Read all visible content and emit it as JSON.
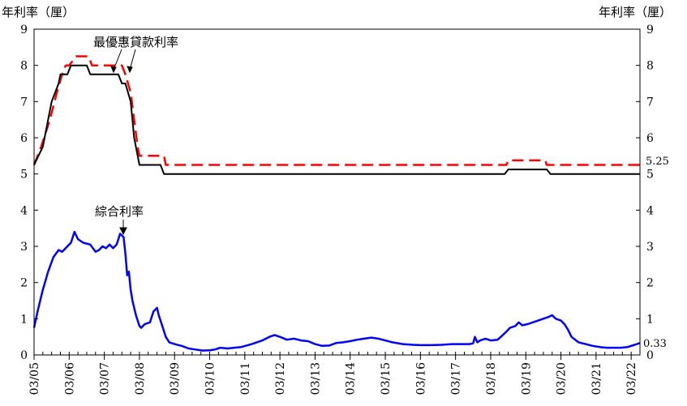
{
  "chart_data": {
    "type": "line",
    "ylabel_left": "年利率（厘）",
    "ylabel_right": "年利率（厘）",
    "ylim": [
      0,
      9
    ],
    "yticks": [
      0,
      1,
      2,
      3,
      4,
      5,
      6,
      7,
      8,
      9
    ],
    "xlim": [
      2005.0,
      2022.25
    ],
    "xtick_labels": [
      "03/05",
      "03/06",
      "03/07",
      "03/08",
      "03/09",
      "03/10",
      "03/11",
      "03/12",
      "03/13",
      "03/14",
      "03/15",
      "03/16",
      "03/17",
      "03/18",
      "03/19",
      "03/20",
      "03/21",
      "03/22"
    ],
    "xtick_years": [
      2005,
      2006,
      2007,
      2008,
      2009,
      2010,
      2011,
      2012,
      2013,
      2014,
      2015,
      2016,
      2017,
      2018,
      2019,
      2020,
      2021,
      2022
    ],
    "annotations": {
      "prime_label": "最優惠貸款利率",
      "composite_label": "綜合利率",
      "prime_end_value": "5.25",
      "composite_end_value": "0.33"
    },
    "series": [
      {
        "id": "prime_red",
        "color": "#ff0000",
        "dash": "dashed",
        "points": [
          [
            2005.0,
            5.25
          ],
          [
            2005.2,
            5.75
          ],
          [
            2005.45,
            6.5
          ],
          [
            2005.65,
            7.25
          ],
          [
            2005.8,
            7.75
          ],
          [
            2005.9,
            8.0
          ],
          [
            2006.0,
            8.0
          ],
          [
            2006.2,
            8.25
          ],
          [
            2006.55,
            8.25
          ],
          [
            2006.65,
            8.0
          ],
          [
            2007.5,
            8.0
          ],
          [
            2007.6,
            7.75
          ],
          [
            2007.75,
            7.25
          ],
          [
            2007.85,
            6.5
          ],
          [
            2007.95,
            5.75
          ],
          [
            2008.0,
            5.5
          ],
          [
            2008.7,
            5.5
          ],
          [
            2008.75,
            5.25
          ],
          [
            2018.45,
            5.25
          ],
          [
            2018.5,
            5.375
          ],
          [
            2019.55,
            5.375
          ],
          [
            2019.6,
            5.25
          ],
          [
            2022.25,
            5.25
          ]
        ]
      },
      {
        "id": "prime_black",
        "color": "#000000",
        "dash": "solid",
        "points": [
          [
            2005.0,
            5.25
          ],
          [
            2005.25,
            5.75
          ],
          [
            2005.5,
            7.0
          ],
          [
            2005.7,
            7.5
          ],
          [
            2005.75,
            7.75
          ],
          [
            2005.95,
            7.75
          ],
          [
            2006.05,
            8.0
          ],
          [
            2006.5,
            8.0
          ],
          [
            2006.6,
            7.75
          ],
          [
            2007.4,
            7.75
          ],
          [
            2007.5,
            7.5
          ],
          [
            2007.6,
            7.5
          ],
          [
            2007.75,
            7.0
          ],
          [
            2007.85,
            6.0
          ],
          [
            2008.0,
            5.25
          ],
          [
            2008.6,
            5.25
          ],
          [
            2008.7,
            5.0
          ],
          [
            2018.4,
            5.0
          ],
          [
            2018.5,
            5.125
          ],
          [
            2019.6,
            5.125
          ],
          [
            2019.7,
            5.0
          ],
          [
            2022.25,
            5.0
          ]
        ]
      },
      {
        "id": "composite",
        "color": "#0000ff",
        "dash": "solid",
        "points": [
          [
            2005.0,
            0.75
          ],
          [
            2005.1,
            1.2
          ],
          [
            2005.25,
            1.8
          ],
          [
            2005.4,
            2.3
          ],
          [
            2005.55,
            2.7
          ],
          [
            2005.7,
            2.9
          ],
          [
            2005.8,
            2.85
          ],
          [
            2005.95,
            3.0
          ],
          [
            2006.05,
            3.1
          ],
          [
            2006.15,
            3.4
          ],
          [
            2006.25,
            3.2
          ],
          [
            2006.4,
            3.1
          ],
          [
            2006.6,
            3.05
          ],
          [
            2006.75,
            2.85
          ],
          [
            2006.85,
            2.9
          ],
          [
            2006.95,
            3.0
          ],
          [
            2007.05,
            2.95
          ],
          [
            2007.15,
            3.05
          ],
          [
            2007.25,
            2.95
          ],
          [
            2007.35,
            3.05
          ],
          [
            2007.45,
            3.35
          ],
          [
            2007.55,
            3.25
          ],
          [
            2007.6,
            2.8
          ],
          [
            2007.65,
            2.2
          ],
          [
            2007.7,
            2.3
          ],
          [
            2007.75,
            1.8
          ],
          [
            2007.8,
            1.5
          ],
          [
            2007.9,
            1.1
          ],
          [
            2008.0,
            0.8
          ],
          [
            2008.05,
            0.75
          ],
          [
            2008.15,
            0.85
          ],
          [
            2008.3,
            0.9
          ],
          [
            2008.4,
            1.2
          ],
          [
            2008.5,
            1.3
          ],
          [
            2008.55,
            1.1
          ],
          [
            2008.65,
            0.8
          ],
          [
            2008.75,
            0.5
          ],
          [
            2008.85,
            0.35
          ],
          [
            2009.0,
            0.3
          ],
          [
            2009.2,
            0.25
          ],
          [
            2009.4,
            0.18
          ],
          [
            2009.6,
            0.15
          ],
          [
            2009.8,
            0.12
          ],
          [
            2010.0,
            0.13
          ],
          [
            2010.15,
            0.15
          ],
          [
            2010.3,
            0.2
          ],
          [
            2010.5,
            0.18
          ],
          [
            2010.7,
            0.2
          ],
          [
            2010.9,
            0.22
          ],
          [
            2011.2,
            0.3
          ],
          [
            2011.5,
            0.4
          ],
          [
            2011.7,
            0.5
          ],
          [
            2011.85,
            0.55
          ],
          [
            2012.0,
            0.5
          ],
          [
            2012.2,
            0.42
          ],
          [
            2012.4,
            0.45
          ],
          [
            2012.6,
            0.4
          ],
          [
            2012.8,
            0.38
          ],
          [
            2013.0,
            0.3
          ],
          [
            2013.2,
            0.25
          ],
          [
            2013.4,
            0.26
          ],
          [
            2013.6,
            0.33
          ],
          [
            2013.8,
            0.35
          ],
          [
            2014.0,
            0.38
          ],
          [
            2014.2,
            0.42
          ],
          [
            2014.4,
            0.45
          ],
          [
            2014.6,
            0.48
          ],
          [
            2014.8,
            0.45
          ],
          [
            2015.0,
            0.4
          ],
          [
            2015.2,
            0.35
          ],
          [
            2015.5,
            0.3
          ],
          [
            2015.8,
            0.28
          ],
          [
            2016.0,
            0.27
          ],
          [
            2016.3,
            0.27
          ],
          [
            2016.6,
            0.28
          ],
          [
            2016.9,
            0.3
          ],
          [
            2017.2,
            0.3
          ],
          [
            2017.4,
            0.3
          ],
          [
            2017.5,
            0.32
          ],
          [
            2017.55,
            0.5
          ],
          [
            2017.62,
            0.35
          ],
          [
            2017.7,
            0.4
          ],
          [
            2017.85,
            0.45
          ],
          [
            2018.0,
            0.4
          ],
          [
            2018.2,
            0.42
          ],
          [
            2018.4,
            0.6
          ],
          [
            2018.55,
            0.75
          ],
          [
            2018.7,
            0.8
          ],
          [
            2018.8,
            0.9
          ],
          [
            2018.9,
            0.82
          ],
          [
            2019.05,
            0.85
          ],
          [
            2019.2,
            0.9
          ],
          [
            2019.35,
            0.95
          ],
          [
            2019.5,
            1.0
          ],
          [
            2019.65,
            1.05
          ],
          [
            2019.75,
            1.1
          ],
          [
            2019.85,
            1.0
          ],
          [
            2020.0,
            0.95
          ],
          [
            2020.1,
            0.85
          ],
          [
            2020.2,
            0.7
          ],
          [
            2020.3,
            0.5
          ],
          [
            2020.5,
            0.35
          ],
          [
            2020.7,
            0.3
          ],
          [
            2020.9,
            0.25
          ],
          [
            2021.1,
            0.22
          ],
          [
            2021.3,
            0.2
          ],
          [
            2021.5,
            0.2
          ],
          [
            2021.7,
            0.2
          ],
          [
            2021.9,
            0.22
          ],
          [
            2022.1,
            0.28
          ],
          [
            2022.25,
            0.33
          ]
        ]
      }
    ]
  }
}
